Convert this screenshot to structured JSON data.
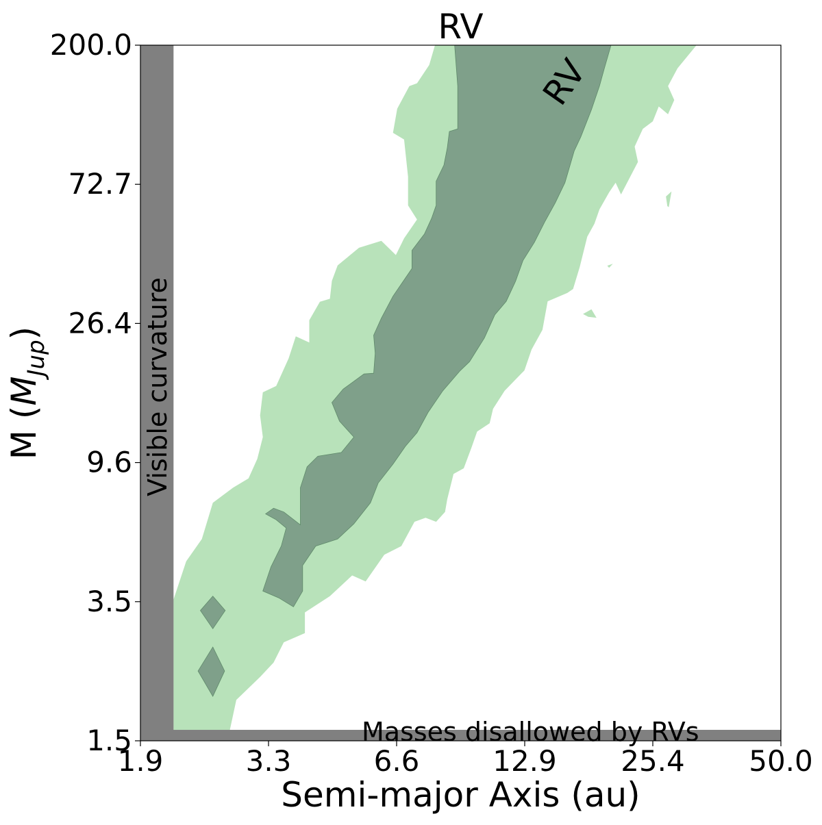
{
  "chart_data": {
    "type": "contour",
    "title": "RV",
    "xlabel": "Semi-major Axis (au)",
    "ylabel_main": "M (",
    "ylabel_symbol": "M",
    "ylabel_subscript": "Jup",
    "ylabel_close": ")",
    "xscale": "log",
    "yscale": "log",
    "xlim": [
      1.9,
      50.0
    ],
    "ylim": [
      1.5,
      200.0
    ],
    "xticks": [
      "1.9",
      "3.3",
      "6.6",
      "12.9",
      "25.4",
      "50.0"
    ],
    "yticks": [
      "1.5",
      "3.5",
      "9.6",
      "26.4",
      "72.7",
      "200.0"
    ],
    "contour_label": "RV",
    "colors": {
      "inner": "#7fa08a",
      "outer": "#b8e2ba",
      "excluded": "#808080"
    },
    "excluded_regions": [
      {
        "name": "visible-curvature",
        "label": "Visible curvature",
        "x_range": [
          1.9,
          2.25
        ],
        "y_range": [
          1.5,
          200.0
        ]
      },
      {
        "name": "masses-disallowed",
        "label": "Masses disallowed by RVs",
        "x_range": [
          1.9,
          50.0
        ],
        "y_range": [
          1.5,
          1.62
        ]
      }
    ],
    "regions": [
      {
        "level": "outer",
        "polygon": [
          [
            2.25,
            4.05
          ],
          [
            2.4,
            5.3
          ],
          [
            2.6,
            6.2
          ],
          [
            2.75,
            8.0
          ],
          [
            3.05,
            8.9
          ],
          [
            3.3,
            9.5
          ],
          [
            3.45,
            10.9
          ],
          [
            3.55,
            12.7
          ],
          [
            3.5,
            14.8
          ],
          [
            3.55,
            17.4
          ],
          [
            3.8,
            18.2
          ],
          [
            4.05,
            22.1
          ],
          [
            4.2,
            25.8
          ],
          [
            4.5,
            24.7
          ],
          [
            4.5,
            28.9
          ],
          [
            4.75,
            32.9
          ],
          [
            5.0,
            33.6
          ],
          [
            5.05,
            38.1
          ],
          [
            5.2,
            42.5
          ],
          [
            5.8,
            48.1
          ],
          [
            6.5,
            50.5
          ],
          [
            7.0,
            45.7
          ],
          [
            7.3,
            51.4
          ],
          [
            7.8,
            58.7
          ],
          [
            7.45,
            64.8
          ],
          [
            7.45,
            79.3
          ],
          [
            7.3,
            103
          ],
          [
            6.9,
            108
          ],
          [
            7.05,
            128
          ],
          [
            7.5,
            150
          ],
          [
            7.8,
            153
          ],
          [
            8.3,
            174
          ],
          [
            8.55,
            200
          ],
          [
            32.5,
            200
          ],
          [
            29.5,
            170
          ],
          [
            28.1,
            150
          ],
          [
            29.0,
            136
          ],
          [
            28.1,
            123
          ],
          [
            26.8,
            130
          ],
          [
            26.0,
            117
          ],
          [
            24.7,
            111
          ],
          [
            23.7,
            98
          ],
          [
            24.1,
            88
          ],
          [
            22.1,
            70
          ],
          [
            21.5,
            76
          ],
          [
            20.8,
            71
          ],
          [
            19.8,
            63
          ],
          [
            19.3,
            57
          ],
          [
            18.6,
            52
          ],
          [
            17.9,
            42
          ],
          [
            17.3,
            36
          ],
          [
            16.8,
            35
          ],
          [
            15.2,
            33
          ],
          [
            14.8,
            27
          ],
          [
            14.0,
            23.5
          ],
          [
            13.5,
            20.3
          ],
          [
            12.2,
            17.6
          ],
          [
            11.5,
            15.5
          ],
          [
            11.3,
            14.0
          ],
          [
            10.6,
            13.2
          ],
          [
            10.3,
            11.8
          ],
          [
            9.9,
            10.2
          ],
          [
            9.4,
            9.8
          ],
          [
            9.1,
            8.2
          ],
          [
            9.0,
            7.5
          ],
          [
            8.6,
            7.0
          ],
          [
            8.15,
            7.2
          ],
          [
            7.7,
            7.0
          ],
          [
            7.2,
            5.9
          ],
          [
            6.6,
            5.55
          ],
          [
            6.0,
            4.6
          ],
          [
            5.6,
            4.8
          ],
          [
            5.0,
            4.15
          ],
          [
            4.4,
            3.7
          ],
          [
            4.4,
            3.2
          ],
          [
            3.95,
            3.0
          ],
          [
            3.75,
            2.6
          ],
          [
            3.5,
            2.35
          ],
          [
            3.1,
            2.0
          ],
          [
            3.0,
            1.62
          ],
          [
            2.25,
            1.62
          ]
        ]
      },
      {
        "level": "inner",
        "polygon": [
          [
            3.55,
            4.3
          ],
          [
            3.7,
            5.1
          ],
          [
            3.9,
            5.9
          ],
          [
            4.0,
            6.7
          ],
          [
            3.8,
            7.1
          ],
          [
            3.6,
            7.4
          ],
          [
            3.75,
            7.7
          ],
          [
            3.95,
            7.5
          ],
          [
            4.3,
            6.85
          ],
          [
            4.3,
            8.9
          ],
          [
            4.45,
            10.3
          ],
          [
            4.7,
            11.1
          ],
          [
            5.3,
            11.4
          ],
          [
            5.65,
            12.7
          ],
          [
            5.25,
            14.2
          ],
          [
            5.05,
            16.2
          ],
          [
            5.35,
            17.8
          ],
          [
            5.95,
            19.8
          ],
          [
            6.25,
            19.9
          ],
          [
            6.3,
            22.9
          ],
          [
            6.25,
            26.0
          ],
          [
            6.5,
            29.3
          ],
          [
            6.9,
            34.2
          ],
          [
            7.25,
            37.8
          ],
          [
            7.6,
            41.6
          ],
          [
            7.6,
            47.2
          ],
          [
            8.1,
            53.0
          ],
          [
            8.4,
            59.1
          ],
          [
            8.6,
            64.8
          ],
          [
            8.6,
            76.8
          ],
          [
            8.95,
            86.1
          ],
          [
            9.1,
            96.9
          ],
          [
            9.2,
            109
          ],
          [
            9.6,
            111
          ],
          [
            9.6,
            150
          ],
          [
            9.45,
            200
          ],
          [
            21.0,
            200
          ],
          [
            20.3,
            170
          ],
          [
            19.8,
            150
          ],
          [
            19.0,
            127
          ],
          [
            18.0,
            105
          ],
          [
            17.4,
            95
          ],
          [
            16.6,
            76
          ],
          [
            15.8,
            66
          ],
          [
            15.0,
            58
          ],
          [
            14.2,
            50
          ],
          [
            13.4,
            44
          ],
          [
            12.9,
            38
          ],
          [
            12.3,
            33
          ],
          [
            11.6,
            30
          ],
          [
            11.0,
            25.5
          ],
          [
            10.2,
            21.6
          ],
          [
            9.7,
            20.2
          ],
          [
            8.9,
            17.6
          ],
          [
            8.25,
            15.1
          ],
          [
            7.8,
            13.1
          ],
          [
            7.35,
            11.9
          ],
          [
            6.9,
            10.5
          ],
          [
            6.4,
            9.2
          ],
          [
            6.15,
            8.0
          ],
          [
            5.65,
            6.9
          ],
          [
            5.2,
            6.2
          ],
          [
            4.65,
            5.9
          ],
          [
            4.35,
            5.15
          ],
          [
            4.35,
            4.3
          ],
          [
            4.15,
            3.85
          ],
          [
            3.85,
            4.1
          ]
        ]
      },
      {
        "level": "inner",
        "polygon": [
          [
            2.75,
            3.3
          ],
          [
            2.93,
            3.75
          ],
          [
            2.75,
            4.15
          ],
          [
            2.58,
            3.75
          ]
        ]
      },
      {
        "level": "inner",
        "polygon": [
          [
            2.75,
            2.05
          ],
          [
            2.92,
            2.45
          ],
          [
            2.75,
            2.9
          ],
          [
            2.55,
            2.45
          ]
        ]
      },
      {
        "level": "outer",
        "polygon": [
          [
            27.8,
            69
          ],
          [
            28.6,
            71.5
          ],
          [
            28.2,
            64
          ],
          [
            28.0,
            64.5
          ]
        ]
      },
      {
        "level": "outer",
        "polygon": [
          [
            20.6,
            42.4
          ],
          [
            21.2,
            43.0
          ],
          [
            20.8,
            41.8
          ]
        ]
      },
      {
        "level": "outer",
        "polygon": [
          [
            18.2,
            30.2
          ],
          [
            19.0,
            31.2
          ],
          [
            19.5,
            29.4
          ],
          [
            18.7,
            29.6
          ]
        ]
      },
      {
        "level": "outer",
        "polygon": [
          [
            6.25,
            5.45
          ],
          [
            6.4,
            5.6
          ],
          [
            6.3,
            5.25
          ]
        ]
      }
    ]
  }
}
